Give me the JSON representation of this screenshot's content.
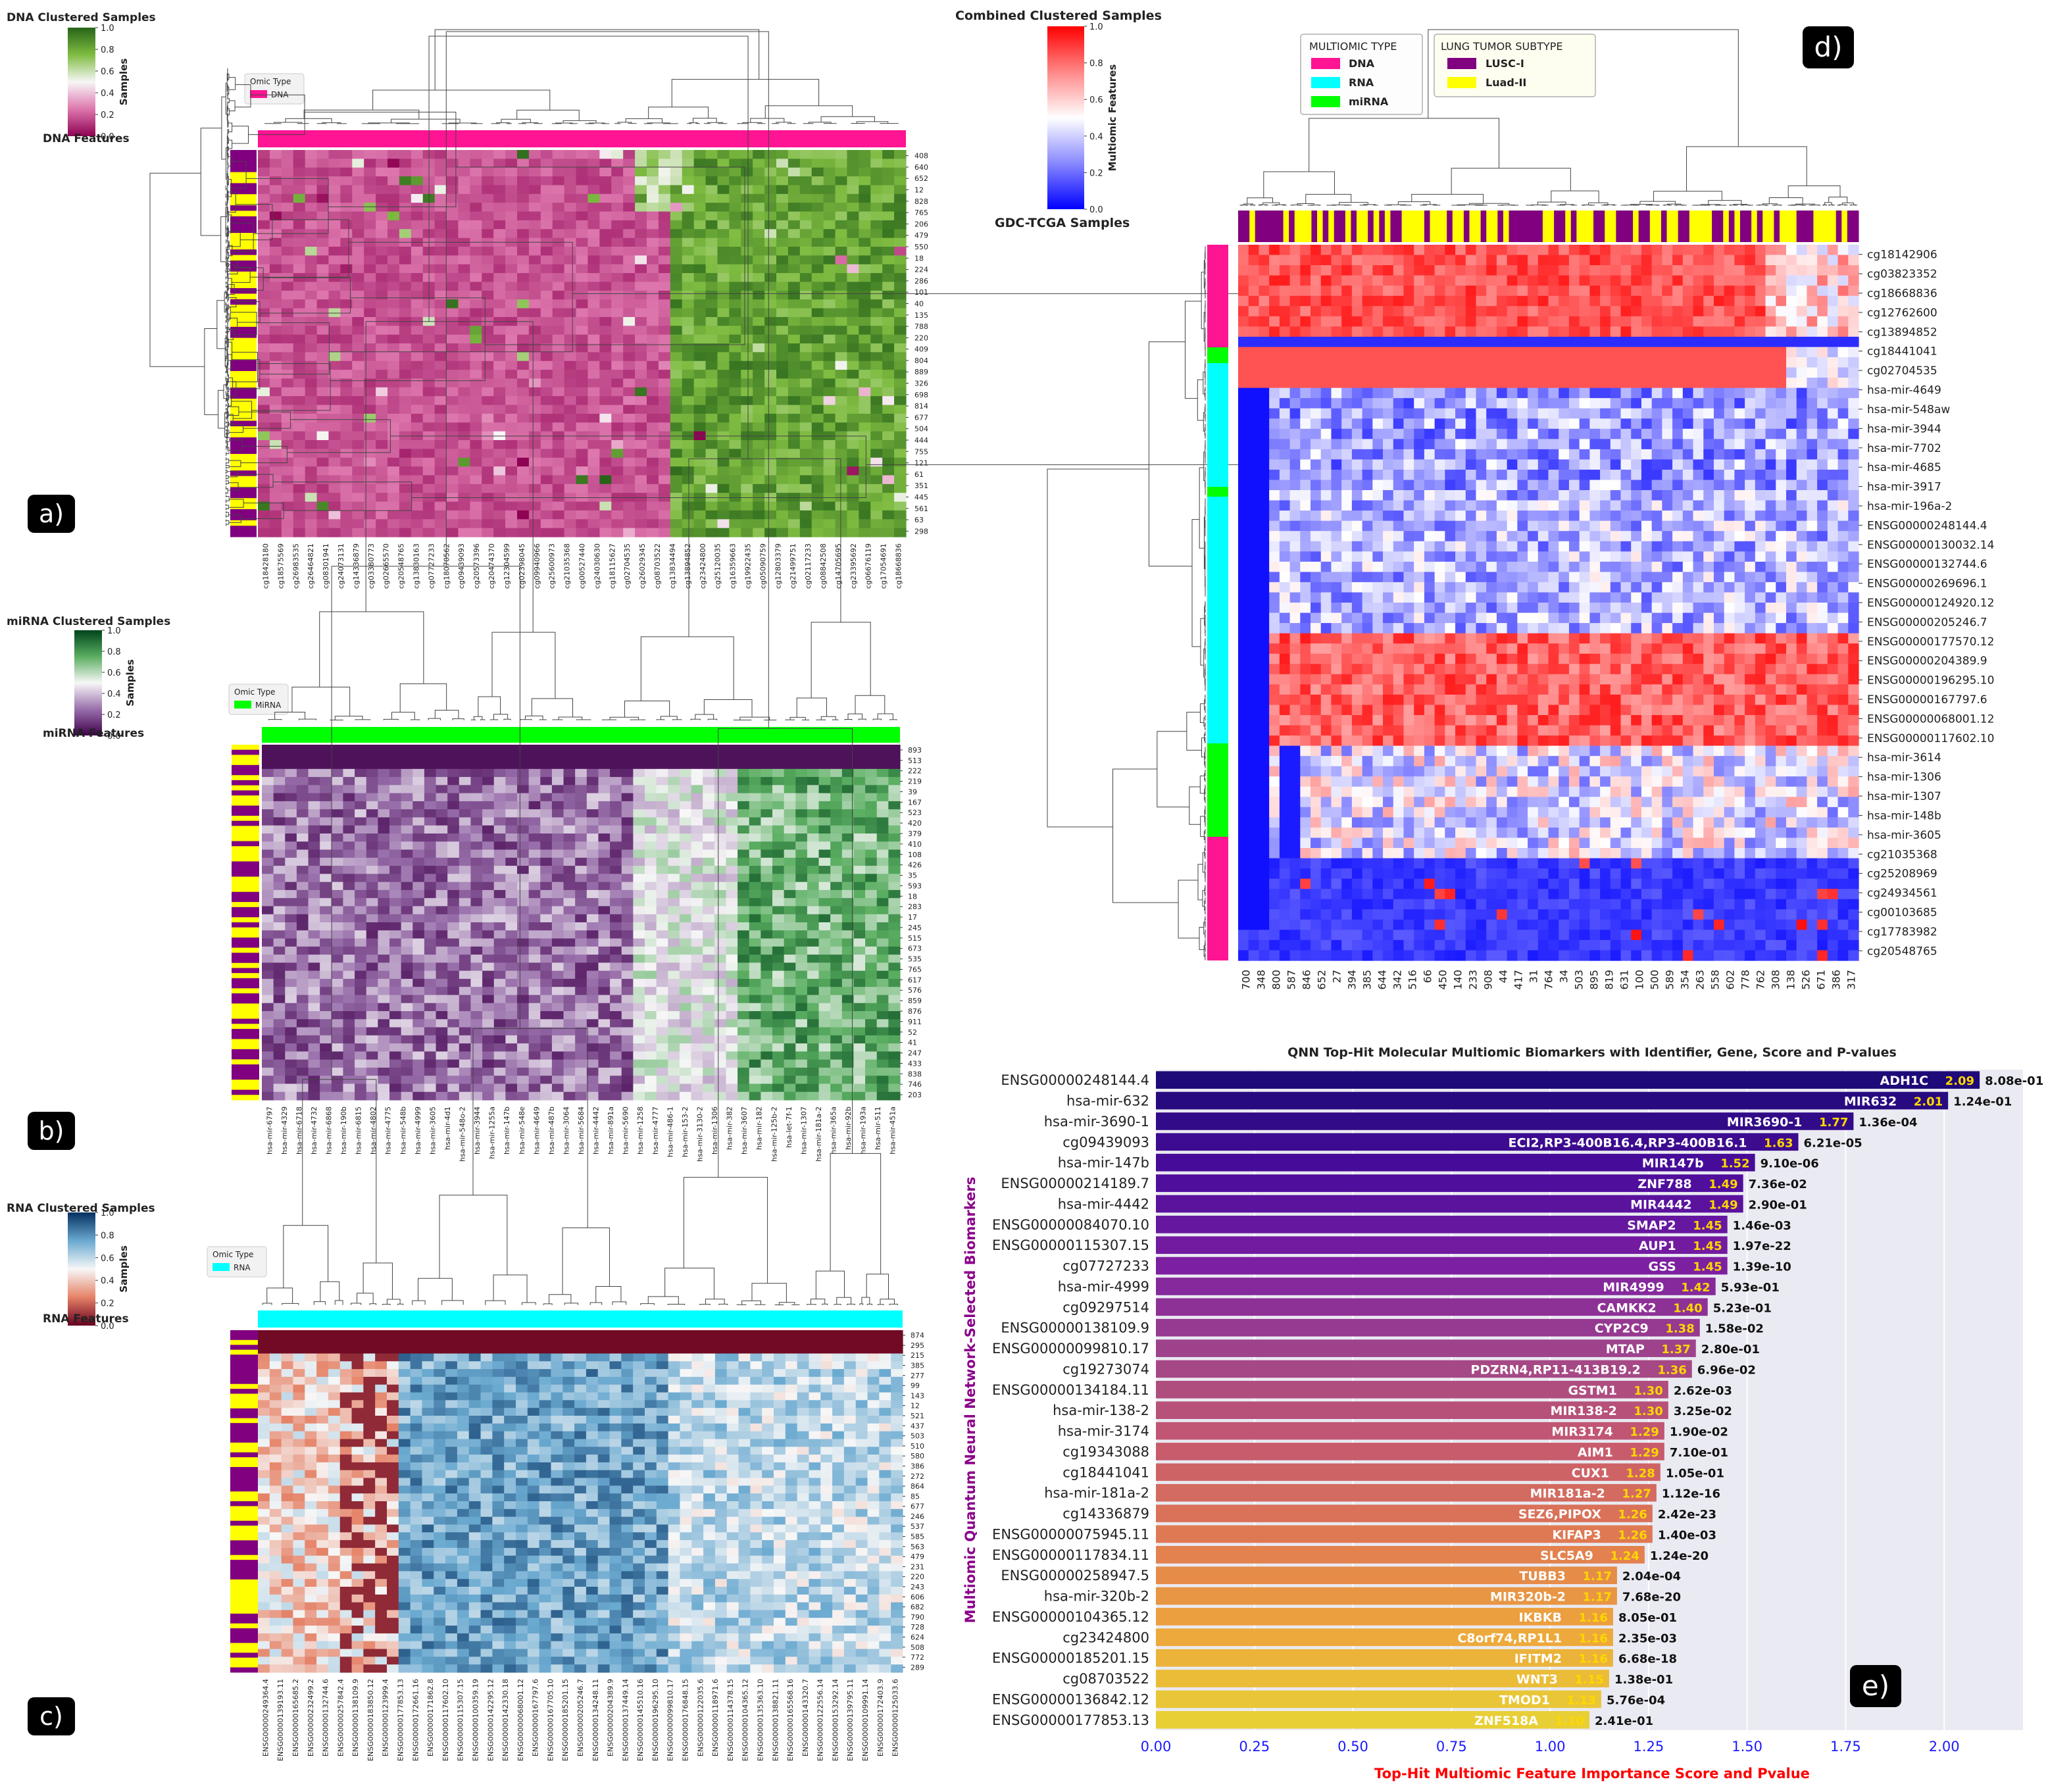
{
  "panels": [
    {
      "id": "a",
      "title": "DNA Clustered Samples",
      "cbar_label": "Samples",
      "cbar_ticks": [
        "1.0",
        "0.8",
        "0.6",
        "0.4",
        "0.2",
        "0.0"
      ],
      "cbar_colors": [
        "#276419",
        "#7fbc41",
        "#f7f7f7",
        "#de77ae",
        "#8e0152"
      ],
      "legend_title": "Omic Type",
      "legend_label": "DNA",
      "legend_color": "#ff1493",
      "features_label": "DNA Features",
      "row_labels": [
        "408",
        "640",
        "652",
        "12",
        "828",
        "765",
        "206",
        "479",
        "550",
        "18",
        "224",
        "286",
        "101",
        "40",
        "135",
        "788",
        "220",
        "409",
        "804",
        "889",
        "326",
        "698",
        "814",
        "677",
        "504",
        "444",
        "755",
        "121",
        "61",
        "351",
        "445",
        "561",
        "63",
        "298"
      ],
      "col_labels": [
        "cg18428180",
        "cg18575569",
        "cg26983535",
        "cg26464821",
        "cg08301941",
        "cg24073131",
        "cg14336879",
        "cg03380773",
        "cg02665570",
        "cg20548765",
        "cg13830163",
        "cg07727233",
        "cg18070562",
        "cg09439093",
        "cg20573396",
        "cg20474370",
        "cg12304599",
        "cg02398045",
        "cg09940966",
        "cg25600973",
        "cg21035368",
        "cg00527440",
        "cg24030630",
        "cg18115627",
        "cg02704535",
        "cg26029345",
        "cg08703522",
        "cg13834494",
        "cg13894852",
        "cg23424800",
        "cg25120035",
        "cg16359663",
        "cg19922435",
        "cg05090759",
        "cg12803379",
        "cg21499751",
        "cg02117233",
        "cg08842508",
        "cg14705695",
        "cg23395692",
        "cg06676119",
        "cg17054691",
        "cg18668836"
      ],
      "badge": "a)"
    },
    {
      "id": "b",
      "title": "miRNA Clustered Samples",
      "cbar_label": "Samples",
      "cbar_ticks": [
        "1.0",
        "0.8",
        "0.6",
        "0.4",
        "0.2",
        "0.0"
      ],
      "cbar_colors": [
        "#00441b",
        "#5aae61",
        "#f7f7f7",
        "#9970ab",
        "#40004b"
      ],
      "legend_title": "Omic Type",
      "legend_label": "MiRNA",
      "legend_color": "#00ff00",
      "features_label": "miRNA Features",
      "row_labels": [
        "893",
        "513",
        "222",
        "219",
        "39",
        "167",
        "523",
        "420",
        "379",
        "410",
        "108",
        "426",
        "35",
        "593",
        "18",
        "283",
        "17",
        "245",
        "515",
        "673",
        "535",
        "765",
        "617",
        "576",
        "859",
        "876",
        "911",
        "52",
        "41",
        "247",
        "433",
        "838",
        "746",
        "203"
      ],
      "col_labels": [
        "hsa-mir-6797",
        "hsa-mir-4329",
        "hsa-mir-6718",
        "hsa-mir-4732",
        "hsa-mir-6868",
        "hsa-mir-190b",
        "hsa-mir-6815",
        "hsa-mir-4802",
        "hsa-mir-4775",
        "hsa-mir-548b",
        "hsa-mir-4999",
        "hsa-mir-3605",
        "hsa-mir-4d1",
        "hsa-mir-548o-2",
        "hsa-mir-3944",
        "hsa-mir-1255a",
        "hsa-mir-147b",
        "hsa-mir-548e",
        "hsa-mir-4649",
        "hsa-mir-487b",
        "hsa-mir-3064",
        "hsa-mir-5684",
        "hsa-mir-4442",
        "hsa-mir-891a",
        "hsa-mir-5690",
        "hsa-mir-1258",
        "hsa-mir-4777",
        "hsa-mir-486-1",
        "hsa-mir-153-2",
        "hsa-mir-3130-2",
        "hsa-mir-1306",
        "hsa-mir-382",
        "hsa-mir-3607",
        "hsa-mir-182",
        "hsa-mir-125b-2",
        "hsa-let-7f-1",
        "hsa-mir-1307",
        "hsa-mir-181a-2",
        "hsa-mir-365a",
        "hsa-mir-92b",
        "hsa-mir-193a",
        "hsa-mir-511",
        "hsa-mir-451a"
      ],
      "badge": "b)"
    },
    {
      "id": "c",
      "title": "RNA Clustered Samples",
      "cbar_label": "Samples",
      "cbar_ticks": [
        "1.0",
        "0.8",
        "0.6",
        "0.4",
        "0.2",
        "0.0"
      ],
      "cbar_colors": [
        "#053061",
        "#6aa9d0",
        "#f7f7f7",
        "#e58267",
        "#67001f"
      ],
      "legend_title": "Omic Type",
      "legend_label": "RNA",
      "legend_color": "#00ffff",
      "features_label": "RNA Features",
      "row_labels": [
        "874",
        "295",
        "215",
        "385",
        "277",
        "99",
        "143",
        "12",
        "521",
        "437",
        "503",
        "510",
        "580",
        "386",
        "272",
        "864",
        "85",
        "677",
        "246",
        "537",
        "585",
        "563",
        "479",
        "231",
        "220",
        "243",
        "606",
        "682",
        "790",
        "728",
        "624",
        "508",
        "772",
        "289"
      ],
      "col_labels": [
        "ENSG00000249364.4",
        "ENSG00000139193.11",
        "ENSG00000165685.2",
        "ENSG00000232499.2",
        "ENSG00000132744.6",
        "ENSG00000257842.4",
        "ENSG00000138109.9",
        "ENSG00000183850.12",
        "ENSG00000123999.4",
        "ENSG00000177853.13",
        "ENSG00000172661.16",
        "ENSG00000171862.8",
        "ENSG00000117602.10",
        "ENSG00000115307.15",
        "ENSG00000100359.19",
        "ENSG00000142295.12",
        "ENSG00000142330.18",
        "ENSG00000068001.12",
        "ENSG00000167797.6",
        "ENSG00000167705.10",
        "ENSG00000185201.15",
        "ENSG00000205246.7",
        "ENSG00000134248.11",
        "ENSG00000204389.9",
        "ENSG00000137449.14",
        "ENSG00000145510.16",
        "ENSG00000196295.10",
        "ENSG00000099810.17",
        "ENSG00000176848.15",
        "ENSG00000122035.6",
        "ENSG00000118971.6",
        "ENSG00000114378.15",
        "ENSG00000104365.12",
        "ENSG00000135363.10",
        "ENSG00000138821.11",
        "ENSG00000165568.16",
        "ENSG00000143320.7",
        "ENSG00000122556.14",
        "ENSG00000153292.14",
        "ENSG00000139795.11",
        "ENSG00000109991.14",
        "ENSG00000172403.9",
        "ENSG00000125033.6"
      ],
      "badge": "c)"
    }
  ],
  "panel_d": {
    "title": "Combined Clustered Samples",
    "cbar_label": "Multiomic Features",
    "cbar_ticks": [
      "1.0",
      "0.8",
      "0.6",
      "0.4",
      "0.2",
      "0.0"
    ],
    "cbar_colors": [
      "#ff0000",
      "#ff8888",
      "#ffffff",
      "#8888ff",
      "#0000ff"
    ],
    "samples_label": "GDC-TCGA Samples",
    "legend1_title": "MULTIOMIC TYPE",
    "legend1_items": [
      {
        "label": "DNA",
        "color": "#ff1493"
      },
      {
        "label": "RNA",
        "color": "#00ffff"
      },
      {
        "label": "miRNA",
        "color": "#00ff00"
      }
    ],
    "legend2_title": "LUNG TUMOR SUBTYPE",
    "legend2_items": [
      {
        "label": "LUSC-I",
        "color": "#800080"
      },
      {
        "label": "Luad-II",
        "color": "#ffff00"
      }
    ],
    "row_labels": [
      "cg18142906",
      "cg03823352",
      "cg18668836",
      "cg12762600",
      "cg13894852",
      "cg18441041",
      "cg02704535",
      "hsa-mir-4649",
      "hsa-mir-548aw",
      "hsa-mir-3944",
      "hsa-mir-7702",
      "hsa-mir-4685",
      "hsa-mir-3917",
      "hsa-mir-196a-2",
      "ENSG00000248144.4",
      "ENSG00000130032.14",
      "ENSG00000132744.6",
      "ENSG00000269696.1",
      "ENSG00000124920.12",
      "ENSG00000205246.7",
      "ENSG00000177570.12",
      "ENSG00000204389.9",
      "ENSG00000196295.10",
      "ENSG00000167797.6",
      "ENSG00000068001.12",
      "ENSG00000117602.10",
      "hsa-mir-3614",
      "hsa-mir-1306",
      "hsa-mir-1307",
      "hsa-mir-148b",
      "hsa-mir-3605",
      "cg21035368",
      "cg25208969",
      "cg24934561",
      "cg00103685",
      "cg17783982",
      "cg20548765"
    ],
    "col_labels": [
      "700",
      "348",
      "800",
      "587",
      "846",
      "652",
      "27",
      "394",
      "385",
      "644",
      "342",
      "516",
      "66",
      "450",
      "140",
      "233",
      "908",
      "44",
      "417",
      "31",
      "764",
      "34",
      "503",
      "895",
      "819",
      "631",
      "100",
      "500",
      "589",
      "354",
      "263",
      "558",
      "602",
      "778",
      "762",
      "308",
      "138",
      "526",
      "671",
      "386",
      "317"
    ],
    "badge": "d)"
  },
  "panel_e": {
    "title": "QNN Top-Hit Molecular Multiomic Biomarkers with Identifier, Gene, Score and P-values",
    "ylabel": "Multiomic Quantum Neural Network-Selected Biomarkers",
    "xlabel": "Top-Hit Multiomic Feature Importance Score and Pvalue",
    "xticks": [
      "0.00",
      "0.25",
      "0.50",
      "0.75",
      "1.00",
      "1.25",
      "1.50",
      "1.75",
      "2.00"
    ],
    "badge": "e)"
  },
  "chart_data": {
    "type": "bar",
    "orientation": "horizontal",
    "title": "QNN Top-Hit Molecular Multiomic Biomarkers with Identifier, Gene, Score and P-values",
    "xlabel": "Top-Hit Multiomic Feature Importance Score and Pvalue",
    "ylabel": "Multiomic Quantum Neural Network-Selected Biomarkers",
    "xlim": [
      0,
      2.2
    ],
    "categories": [
      "ENSG00000248144.4",
      "hsa-mir-632",
      "hsa-mir-3690-1",
      "cg09439093",
      "hsa-mir-147b",
      "ENSG00000214189.7",
      "hsa-mir-4442",
      "ENSG00000084070.10",
      "ENSG00000115307.15",
      "cg07727233",
      "hsa-mir-4999",
      "cg09297514",
      "ENSG00000138109.9",
      "ENSG00000099810.17",
      "cg19273074",
      "ENSG00000134184.11",
      "hsa-mir-138-2",
      "hsa-mir-3174",
      "cg19343088",
      "cg18441041",
      "hsa-mir-181a-2",
      "cg14336879",
      "ENSG00000075945.11",
      "ENSG00000117834.11",
      "ENSG00000258947.5",
      "hsa-mir-320b-2",
      "ENSG00000104365.12",
      "cg23424800",
      "ENSG00000185201.15",
      "cg08703522",
      "ENSG00000136842.12",
      "ENSG00000177853.13"
    ],
    "genes": [
      "ADH1C",
      "MIR632",
      "MIR3690-1",
      "ECI2,RP3-400B16.4,RP3-400B16.1",
      "MIR147b",
      "ZNF788",
      "MIR4442",
      "SMAP2",
      "AUP1",
      "GSS",
      "MIR4999",
      "CAMKK2",
      "CYP2C9",
      "MTAP",
      "PDZRN4,RP11-413B19.2",
      "GSTM1",
      "MIR138-2",
      "MIR3174",
      "AIM1",
      "CUX1",
      "MIR181a-2",
      "SEZ6,PIPOX",
      "KIFAP3",
      "SLC5A9",
      "TUBB3",
      "MIR320b-2",
      "IKBKB",
      "C8orf74,RP1L1",
      "IFITM2",
      "WNT3",
      "TMOD1",
      "ZNF518A"
    ],
    "values": [
      2.09,
      2.01,
      1.77,
      1.63,
      1.52,
      1.49,
      1.49,
      1.45,
      1.45,
      1.45,
      1.42,
      1.4,
      1.38,
      1.37,
      1.36,
      1.3,
      1.3,
      1.29,
      1.29,
      1.28,
      1.27,
      1.26,
      1.26,
      1.24,
      1.17,
      1.17,
      1.16,
      1.16,
      1.16,
      1.15,
      1.13,
      1.1
    ],
    "score_labels": [
      "2.09",
      "2.01",
      "1.77",
      "1.63",
      "1.52",
      "1.49",
      "1.49",
      "1.45",
      "1.45",
      "1.45",
      "1.42",
      "1.40",
      "1.38",
      "1.37",
      "1.36",
      "1.30",
      "1.30",
      "1.29",
      "1.29",
      "1.28",
      "1.27",
      "1.26",
      "1.26",
      "1.24",
      "1.17",
      "1.17",
      "1.16",
      "1.16",
      "1.16",
      "1.15",
      "1.13",
      "1.10"
    ],
    "pvalues": [
      "8.08e-01",
      "1.24e-01",
      "1.36e-04",
      "6.21e-05",
      "9.10e-06",
      "7.36e-02",
      "2.90e-01",
      "1.46e-03",
      "1.97e-22",
      "1.39e-10",
      "5.93e-01",
      "5.23e-01",
      "1.58e-02",
      "2.80e-01",
      "6.96e-02",
      "2.62e-03",
      "3.25e-02",
      "1.90e-02",
      "7.10e-01",
      "1.05e-01",
      "1.12e-16",
      "2.42e-23",
      "1.40e-03",
      "1.24e-20",
      "2.04e-04",
      "7.68e-20",
      "8.05e-01",
      "2.35e-03",
      "6.68e-18",
      "1.38e-01",
      "5.76e-04",
      "2.41e-01"
    ]
  }
}
